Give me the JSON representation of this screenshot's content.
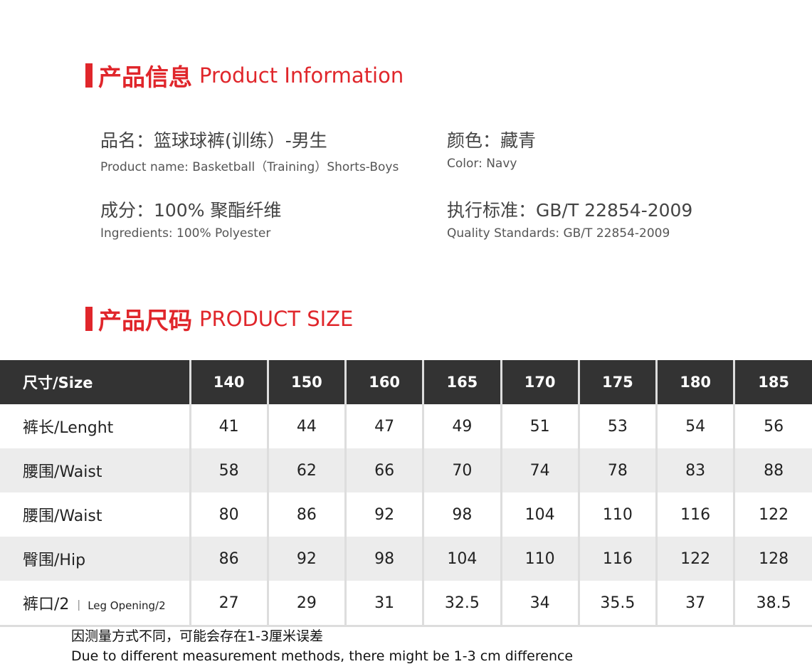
{
  "info_section": {
    "title_cn": "产品信息",
    "title_en": "Product Information"
  },
  "info": [
    {
      "cn": "品名：篮球球裤(训练）-男生",
      "en": "Product name: Basketball（Training）Shorts-Boys"
    },
    {
      "cn": "颜色：藏青",
      "en": "Color: Navy"
    },
    {
      "cn": "成分：100% 聚酯纤维",
      "en": "Ingredients: 100% Polyester"
    },
    {
      "cn": "执行标准：GB/T 22854-2009",
      "en": "Quality Standards: GB/T 22854-2009"
    }
  ],
  "size_section": {
    "title_cn": "产品尺码",
    "title_en": "PRODUCT SIZE"
  },
  "table": {
    "header": [
      "尺寸/Size",
      "140",
      "150",
      "160",
      "165",
      "170",
      "175",
      "180",
      "185"
    ],
    "rows": [
      {
        "label": "裤长/Lenght",
        "values": [
          "41",
          "44",
          "47",
          "49",
          "51",
          "53",
          "54",
          "56"
        ]
      },
      {
        "label": "腰围/Waist",
        "values": [
          "58",
          "62",
          "66",
          "70",
          "74",
          "78",
          "83",
          "88"
        ]
      },
      {
        "label": "腰围/Waist",
        "values": [
          "80",
          "86",
          "92",
          "98",
          "104",
          "110",
          "116",
          "122"
        ]
      },
      {
        "label": "臀围/Hip",
        "values": [
          "86",
          "92",
          "98",
          "104",
          "110",
          "116",
          "122",
          "128"
        ]
      },
      {
        "label": "裤口/2",
        "label_sub": "｜ Leg Opening/2",
        "values": [
          "27",
          "29",
          "31",
          "32.5",
          "34",
          "35.5",
          "37",
          "38.5"
        ]
      }
    ]
  },
  "note": {
    "cn": "因测量方式不同，可能会存在1-3厘米误差",
    "en": "Due to different measurement methods, there might be 1-3 cm difference"
  }
}
